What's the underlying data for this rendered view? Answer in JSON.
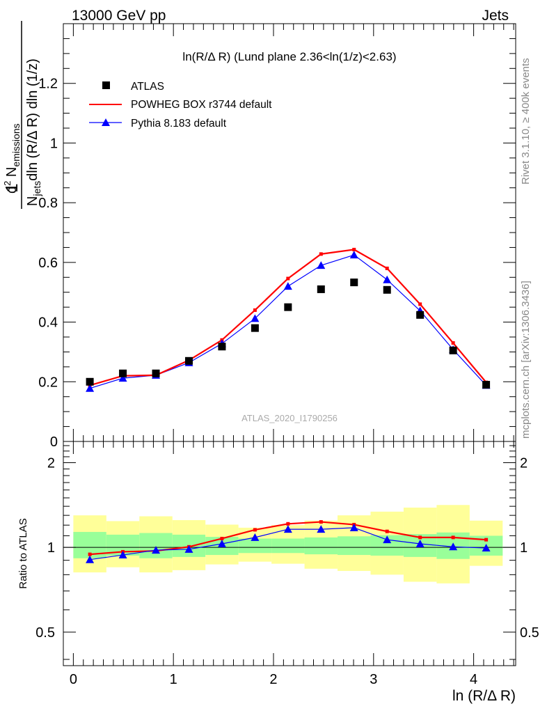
{
  "header": {
    "energy_label": "13000 GeV pp",
    "process_label": "Jets"
  },
  "side_labels": {
    "rivet": "Rivet 3.1.10, ≥ 400k events",
    "mcplots": "mcplots.cern.ch [arXiv:1306.3436]"
  },
  "chart_data": [
    {
      "type": "scatter",
      "title": "ln(R/Δ R) (Lund plane 2.36<ln(1/z)<2.63)",
      "watermark": "ATLAS_2020_I1790256",
      "ylabel": "1/N_jets d²N_emissions / dln(R/Δ R) dln(1/z)",
      "ylabel_parts": {
        "one": "1",
        "d2": "d",
        "sup2": "2",
        "N": "N",
        "emissions": "emissions",
        "N2": "N",
        "jets": "jets",
        "denom_rest": "dln (R/Δ R) dln (1/z)"
      },
      "xlim": [
        -0.1,
        4.42
      ],
      "ylim": [
        0,
        1.4
      ],
      "y_ticks": [
        0,
        0.2,
        0.4,
        0.6,
        0.8,
        1,
        1.2
      ],
      "y_tick_labels": [
        "0",
        "0.2",
        "0.4",
        "0.6",
        "0.8",
        "1",
        "1.2"
      ],
      "legend_position": "top-left",
      "x": [
        0.165,
        0.495,
        0.825,
        1.155,
        1.485,
        1.815,
        2.145,
        2.475,
        2.805,
        3.135,
        3.465,
        3.795,
        4.125
      ],
      "series": [
        {
          "name": "ATLAS",
          "color": "#000000",
          "marker": "square",
          "values": [
            0.2,
            0.228,
            0.228,
            0.27,
            0.318,
            0.38,
            0.45,
            0.51,
            0.533,
            0.508,
            0.424,
            0.305,
            0.19
          ]
        },
        {
          "name": "POWHEG BOX r3744 default",
          "color": "#ff0000",
          "marker": "line",
          "values": [
            0.188,
            0.22,
            0.222,
            0.272,
            0.34,
            0.44,
            0.546,
            0.628,
            0.643,
            0.58,
            0.46,
            0.33,
            0.198
          ]
        },
        {
          "name": "Pythia 8.183 default",
          "color": "#0000ff",
          "marker": "triangle",
          "values": [
            0.178,
            0.212,
            0.222,
            0.264,
            0.328,
            0.412,
            0.52,
            0.59,
            0.625,
            0.542,
            0.438,
            0.308,
            0.188
          ]
        }
      ]
    },
    {
      "type": "line",
      "ylabel": "Ratio to ATLAS",
      "xlabel": "ln (R/Δ R)",
      "xlim": [
        -0.1,
        4.42
      ],
      "ylim": [
        0.38,
        2.38
      ],
      "x_ticks": [
        0,
        1,
        2,
        3,
        4
      ],
      "x_tick_labels": [
        "0",
        "1",
        "2",
        "3",
        "4"
      ],
      "y_ticks": [
        0.5,
        1,
        2
      ],
      "y_tick_labels": [
        "0.5",
        "1",
        "2"
      ],
      "bin_edges": [
        0,
        0.33,
        0.66,
        0.99,
        1.32,
        1.65,
        1.98,
        2.31,
        2.64,
        2.97,
        3.3,
        3.63,
        3.96,
        4.29
      ],
      "band_stat": {
        "color": "#99ff99",
        "low": [
          0.915,
          0.935,
          0.915,
          0.925,
          0.94,
          0.955,
          0.955,
          0.945,
          0.94,
          0.935,
          0.925,
          0.91,
          0.935
        ],
        "high": [
          1.135,
          1.11,
          1.125,
          1.11,
          1.09,
          1.075,
          1.075,
          1.085,
          1.095,
          1.105,
          1.115,
          1.13,
          1.1
        ]
      },
      "band_syst": {
        "color": "#ffff99",
        "low": [
          0.815,
          0.85,
          0.815,
          0.83,
          0.87,
          0.89,
          0.875,
          0.84,
          0.825,
          0.8,
          0.755,
          0.745,
          0.86
        ]
      },
      "band_syst_high": [
        1.3,
        1.24,
        1.29,
        1.25,
        1.205,
        1.175,
        1.2,
        1.245,
        1.3,
        1.34,
        1.385,
        1.415,
        1.245
      ],
      "series": [
        {
          "name": "POWHEG BOX r3744 default",
          "color": "#ff0000",
          "values": [
            0.945,
            0.965,
            0.972,
            1.005,
            1.075,
            1.155,
            1.213,
            1.232,
            1.205,
            1.14,
            1.085,
            1.085,
            1.065
          ]
        },
        {
          "name": "Pythia 8.183 default",
          "color": "#0000ff",
          "values": [
            0.905,
            0.94,
            0.978,
            0.985,
            1.03,
            1.085,
            1.16,
            1.16,
            1.175,
            1.065,
            1.03,
            1.005,
            0.995
          ]
        }
      ]
    }
  ]
}
